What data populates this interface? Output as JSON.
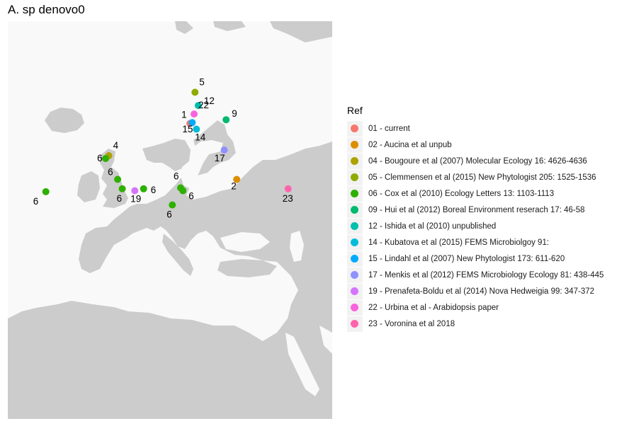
{
  "title": "A. sp denovo0",
  "legend": {
    "title": "Ref",
    "items": [
      {
        "label": "01 - current",
        "color": "#F8766D"
      },
      {
        "label": "02 - Aucina et al unpub",
        "color": "#DB8E00"
      },
      {
        "label": "04 - Bougoure et al (2007) Molecular Ecology 16: 4626-4636",
        "color": "#AEA200"
      },
      {
        "label": "05 - Clemmensen et al (2015) New Phytologist 205: 1525-1536",
        "color": "#8FAA00"
      },
      {
        "label": "06 - Cox et al (2010) Ecology Letters 13: 1103-1113",
        "color": "#2EB000"
      },
      {
        "label": "09 - Hui et al (2012) Boreal Environment reserach 17: 46-58",
        "color": "#00BA6E"
      },
      {
        "label": "12 - Ishida et al (2010) unpublished",
        "color": "#00BFAE"
      },
      {
        "label": "14 - Kubatova et al (2015) FEMS Microbiolgoy 91:",
        "color": "#00BCD8"
      },
      {
        "label": "15 - Lindahl et al (2007) New Phytologist 173: 611-620",
        "color": "#00ABFD"
      },
      {
        "label": "17 - Menkis et al (2012) FEMS Microbiology Ecology 81: 438-445",
        "color": "#8F91FF"
      },
      {
        "label": "19 - Prenafeta-Boldu et al (2014) Nova Hedweigia 99: 347-372",
        "color": "#D575FE"
      },
      {
        "label": "22 - Urbina et al - Arabidopsis paper",
        "color": "#F962DD"
      },
      {
        "label": "23 - Voronina et al 2018",
        "color": "#FF65AC"
      }
    ]
  },
  "chart_data": {
    "type": "scatter",
    "x_unit": "degrees longitude",
    "y_unit": "degrees latitude",
    "xlim": [
      -25,
      45
    ],
    "ylim": [
      30,
      72
    ],
    "points": [
      {
        "ref": "01",
        "label": "1",
        "lon": 14.3,
        "lat": 61.2,
        "color": "#F8766D"
      },
      {
        "ref": "02",
        "label": "2",
        "lon": 24.4,
        "lat": 55.3,
        "color": "#DB8E00"
      },
      {
        "ref": "04",
        "label": "4",
        "lon": -3.2,
        "lat": 57.8,
        "color": "#AEA200"
      },
      {
        "ref": "05",
        "label": "5",
        "lon": 15.4,
        "lat": 64.5,
        "color": "#8FAA00"
      },
      {
        "ref": "06",
        "label": "6",
        "lon": -3.9,
        "lat": 57.5,
        "color": "#2EB000"
      },
      {
        "ref": "06",
        "label": "6",
        "lon": -1.3,
        "lat": 55.3,
        "color": "#2EB000"
      },
      {
        "ref": "06",
        "label": "6",
        "lon": -0.3,
        "lat": 54.3,
        "color": "#2EB000"
      },
      {
        "ref": "06",
        "label": "6",
        "lon": 4.3,
        "lat": 54.3,
        "color": "#2EB000"
      },
      {
        "ref": "06",
        "label": "6",
        "lon": 12.3,
        "lat": 54.4,
        "color": "#2EB000"
      },
      {
        "ref": "06",
        "label": "6",
        "lon": 12.8,
        "lat": 54.1,
        "color": "#2EB000"
      },
      {
        "ref": "06",
        "label": "6",
        "lon": 10.5,
        "lat": 52.6,
        "color": "#2EB000"
      },
      {
        "ref": "06",
        "label": "6",
        "lon": -16.8,
        "lat": 54.0,
        "color": "#2EB000"
      },
      {
        "ref": "09",
        "label": "9",
        "lon": 22.1,
        "lat": 61.6,
        "color": "#00BA6E"
      },
      {
        "ref": "12",
        "label": "12",
        "lon": 16.1,
        "lat": 63.1,
        "color": "#00BFAE"
      },
      {
        "ref": "14",
        "label": "14",
        "lon": 15.7,
        "lat": 60.6,
        "color": "#00BCD8"
      },
      {
        "ref": "15",
        "label": "15",
        "lon": 14.8,
        "lat": 61.3,
        "color": "#00ABFD"
      },
      {
        "ref": "17",
        "label": "17",
        "lon": 21.7,
        "lat": 58.4,
        "color": "#8F91FF"
      },
      {
        "ref": "19",
        "label": "19",
        "lon": 2.4,
        "lat": 54.1,
        "color": "#D575FE"
      },
      {
        "ref": "22",
        "label": "22",
        "lon": 15.2,
        "lat": 62.2,
        "color": "#F962DD"
      },
      {
        "ref": "23",
        "label": "23",
        "lon": 35.5,
        "lat": 54.3,
        "color": "#FF65AC"
      }
    ]
  }
}
